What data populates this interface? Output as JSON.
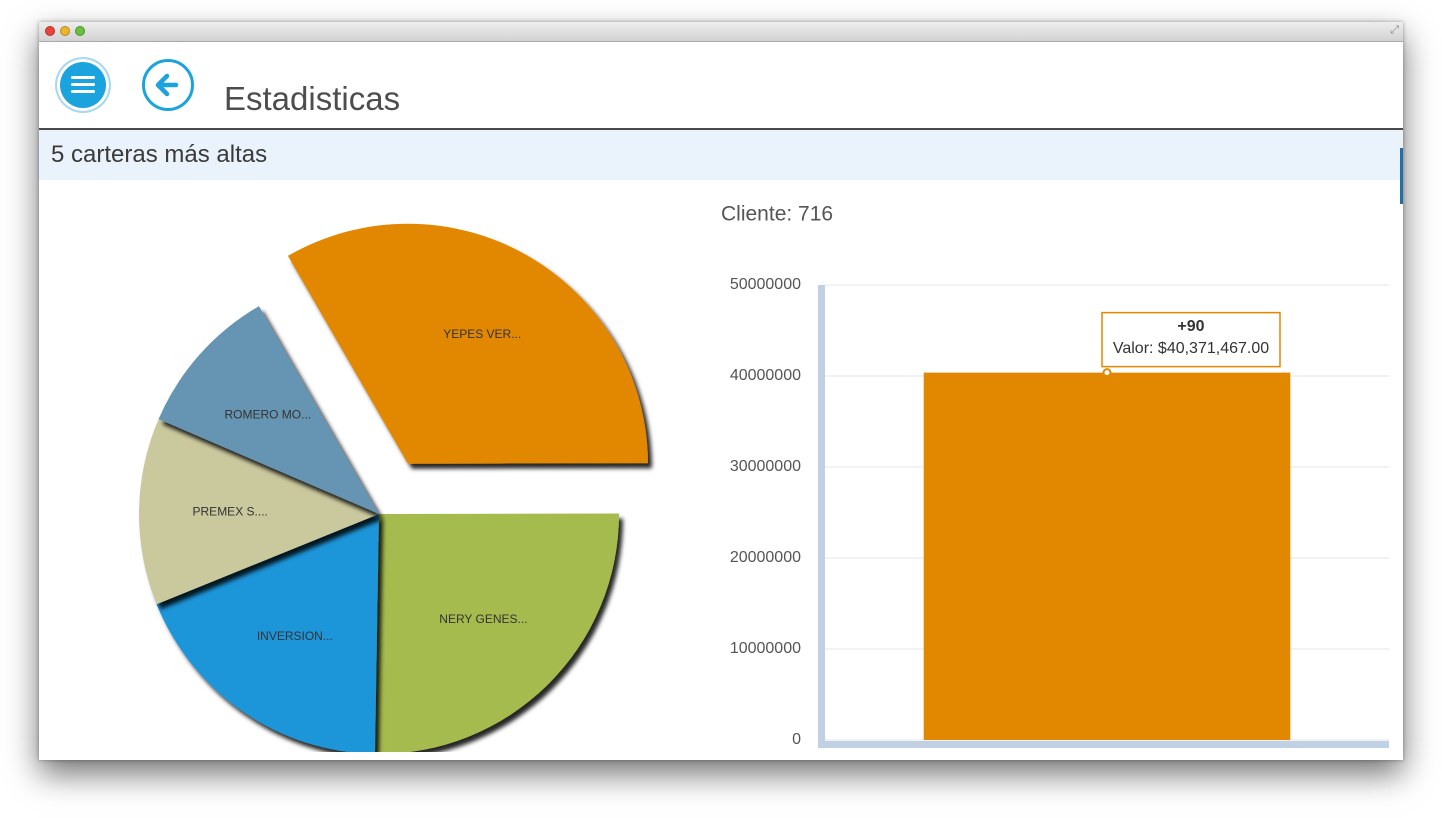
{
  "window": {
    "controls": [
      "close",
      "minimize",
      "zoom"
    ],
    "resize_icon": "expand-icon"
  },
  "header": {
    "menu_icon": "hamburger-menu-icon",
    "back_icon": "arrow-left-icon",
    "title": "Estadisticas"
  },
  "section": {
    "title": "5 carteras más altas"
  },
  "colors": {
    "accent": "#1aa3dc",
    "orange": "#e28700",
    "green": "#a5bb4e",
    "blue": "#1b95d9",
    "beige": "#cac89d",
    "steel": "#6694b3"
  },
  "chart_data": [
    {
      "type": "pie",
      "slices": [
        {
          "label": "YEPES VER...",
          "value": 33.3,
          "color": "#e28700",
          "exploded": true
        },
        {
          "label": "NERY GENES...",
          "value": 25.3,
          "color": "#a5bb4e"
        },
        {
          "label": "INVERSION...",
          "value": 18.6,
          "color": "#1b95d9"
        },
        {
          "label": "PREMEX S....",
          "value": 12.6,
          "color": "#cac89d"
        },
        {
          "label": "ROMERO MO...",
          "value": 10.2,
          "color": "#6694b3"
        }
      ]
    },
    {
      "type": "bar",
      "title": "Cliente: 716",
      "categories": [
        "+90"
      ],
      "values": [
        40371467
      ],
      "color": "#e28700",
      "ylim": [
        0,
        50000000
      ],
      "yticks": [
        "0",
        "10000000",
        "20000000",
        "30000000",
        "40000000",
        "50000000"
      ],
      "grid": true,
      "tooltip": {
        "title": "+90",
        "text": "Valor: $40,371,467.00"
      }
    }
  ]
}
